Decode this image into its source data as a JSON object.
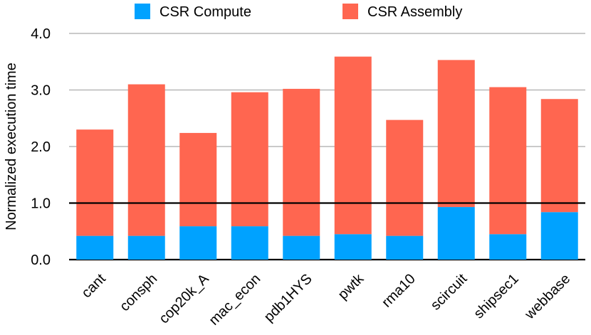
{
  "chart_data": {
    "type": "bar",
    "stacked": true,
    "title": "",
    "xlabel": "",
    "ylabel": "Normalized execution time",
    "ylim": [
      0,
      4
    ],
    "yticks": [
      0,
      1,
      2,
      3,
      4
    ],
    "ytick_labels": [
      "0.0",
      "1.0",
      "2.0",
      "3.0",
      "4.0"
    ],
    "grid": true,
    "reference_line": 1.0,
    "legend_position": "top",
    "categories": [
      "cant",
      "consph",
      "cop20k_A",
      "mac_econ",
      "pdb1HYS",
      "pwtk",
      "rma10",
      "scircuit",
      "shipsec1",
      "webbase"
    ],
    "series": [
      {
        "name": "CSR Compute",
        "color": "#00A2FF",
        "values": [
          0.42,
          0.42,
          0.59,
          0.59,
          0.42,
          0.45,
          0.42,
          0.93,
          0.45,
          0.84
        ]
      },
      {
        "name": "CSR Assembly",
        "color": "#FF6650",
        "values": [
          1.88,
          2.68,
          1.65,
          2.37,
          2.6,
          3.14,
          2.05,
          2.6,
          2.6,
          2.0
        ]
      }
    ]
  }
}
